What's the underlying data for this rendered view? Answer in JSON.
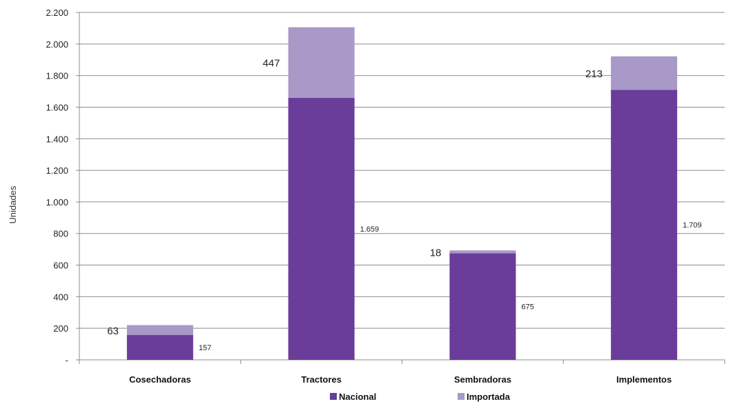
{
  "chart_data": {
    "type": "bar",
    "stacked": true,
    "title": "",
    "xlabel": "",
    "ylabel": "Unidades",
    "ylim": [
      0,
      2200
    ],
    "y_ticks": [
      {
        "value": 0,
        "label": "-"
      },
      {
        "value": 200,
        "label": "200"
      },
      {
        "value": 400,
        "label": "400"
      },
      {
        "value": 600,
        "label": "600"
      },
      {
        "value": 800,
        "label": "800"
      },
      {
        "value": 1000,
        "label": "1.000"
      },
      {
        "value": 1200,
        "label": "1.200"
      },
      {
        "value": 1400,
        "label": "1.400"
      },
      {
        "value": 1600,
        "label": "1.600"
      },
      {
        "value": 1800,
        "label": "1.800"
      },
      {
        "value": 2000,
        "label": "2.000"
      },
      {
        "value": 2200,
        "label": "2.200"
      }
    ],
    "grid": true,
    "legend_position": "bottom",
    "categories": [
      "Cosechadoras",
      "Tractores",
      "Sembradoras",
      "Implementos"
    ],
    "series": [
      {
        "name": "Nacional",
        "color": "#6a3d9a",
        "values": [
          157,
          1659,
          675,
          1709
        ],
        "labels": [
          "157",
          "1.659",
          "675",
          "1.709"
        ]
      },
      {
        "name": "Importada",
        "color": "#a899c8",
        "values": [
          63,
          447,
          18,
          213
        ],
        "labels": [
          "63",
          "447",
          "18",
          "213"
        ]
      }
    ]
  }
}
